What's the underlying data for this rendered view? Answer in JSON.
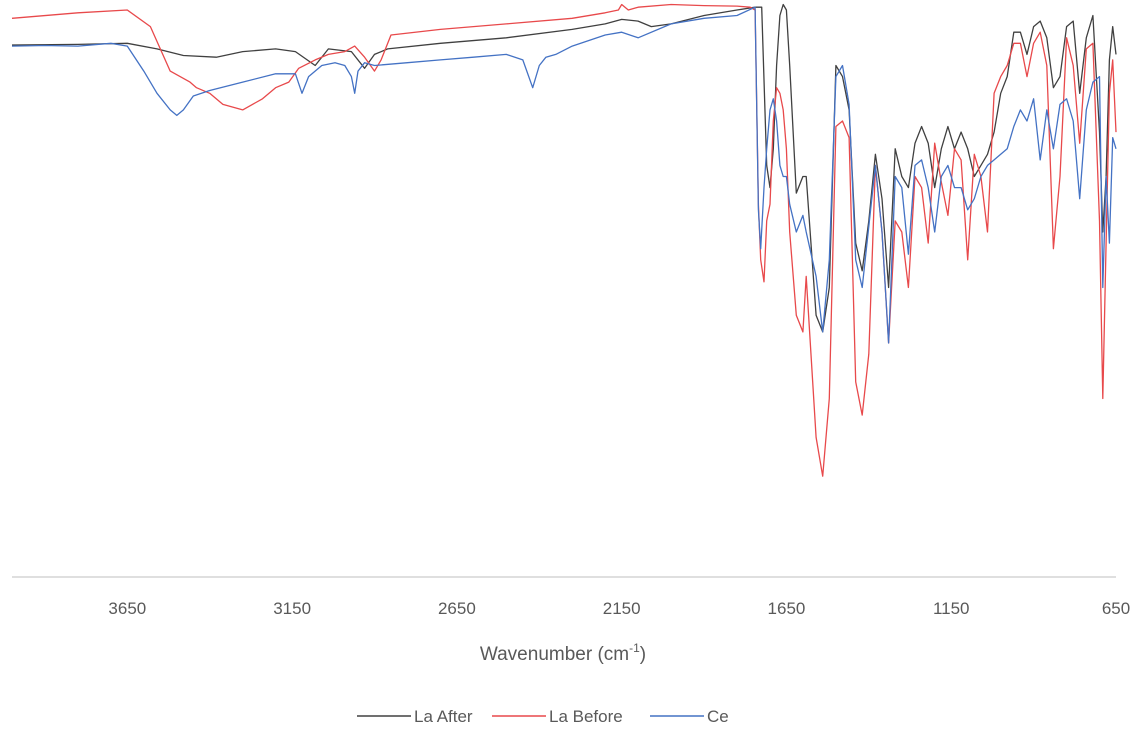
{
  "chart_data": {
    "type": "line",
    "title": "",
    "xlabel": "Wavenumber (cm",
    "xlabel_superscript": "-1",
    "xlabel_suffix": ")",
    "ylabel": "",
    "xlim": [
      4000,
      650
    ],
    "x_reversed": true,
    "ylim": [
      0,
      1
    ],
    "y_axis_visible": false,
    "grid": false,
    "legend_position": "bottom",
    "x_ticks": [
      3650,
      3150,
      2650,
      2150,
      1650,
      1150,
      650
    ],
    "x_tick_labels": [
      "3650",
      "3150",
      "2650",
      "2150",
      "1650",
      "1150",
      "650"
    ],
    "series": [
      {
        "name": "La After",
        "color": "#404040",
        "x": [
          4000,
          3800,
          3650,
          3560,
          3480,
          3380,
          3300,
          3200,
          3140,
          3080,
          3040,
          2970,
          2930,
          2900,
          2860,
          2700,
          2500,
          2300,
          2200,
          2150,
          2100,
          2060,
          2000,
          1900,
          1800,
          1745,
          1725,
          1710,
          1700,
          1690,
          1680,
          1670,
          1660,
          1650,
          1640,
          1620,
          1600,
          1590,
          1560,
          1540,
          1520,
          1500,
          1480,
          1460,
          1440,
          1420,
          1400,
          1380,
          1360,
          1340,
          1320,
          1300,
          1280,
          1260,
          1240,
          1220,
          1200,
          1180,
          1160,
          1140,
          1120,
          1100,
          1080,
          1060,
          1040,
          1020,
          1000,
          980,
          960,
          940,
          920,
          900,
          880,
          860,
          840,
          820,
          800,
          780,
          760,
          740,
          720,
          700,
          690,
          680,
          670,
          660,
          650
        ],
        "y": [
          0.937,
          0.938,
          0.94,
          0.93,
          0.918,
          0.915,
          0.925,
          0.93,
          0.925,
          0.9,
          0.93,
          0.925,
          0.895,
          0.92,
          0.93,
          0.94,
          0.95,
          0.965,
          0.975,
          0.983,
          0.98,
          0.97,
          0.975,
          0.99,
          1.0,
          1.005,
          1.005,
          0.72,
          0.68,
          0.75,
          0.9,
          0.99,
          1.01,
          1.0,
          0.9,
          0.67,
          0.7,
          0.7,
          0.45,
          0.42,
          0.5,
          0.9,
          0.88,
          0.82,
          0.58,
          0.53,
          0.62,
          0.74,
          0.66,
          0.5,
          0.75,
          0.7,
          0.68,
          0.76,
          0.79,
          0.76,
          0.68,
          0.75,
          0.79,
          0.75,
          0.78,
          0.75,
          0.7,
          0.72,
          0.74,
          0.78,
          0.85,
          0.88,
          0.96,
          0.96,
          0.92,
          0.97,
          0.98,
          0.95,
          0.86,
          0.88,
          0.97,
          0.98,
          0.85,
          0.95,
          0.99,
          0.78,
          0.6,
          0.7,
          0.91,
          0.97,
          0.92
        ]
      },
      {
        "name": "La Before",
        "color": "#e8494b",
        "x": [
          4000,
          3800,
          3650,
          3580,
          3520,
          3460,
          3440,
          3400,
          3360,
          3300,
          3240,
          3200,
          3160,
          3130,
          3080,
          3040,
          2990,
          2960,
          2930,
          2900,
          2880,
          2850,
          2700,
          2500,
          2300,
          2200,
          2160,
          2150,
          2130,
          2100,
          2000,
          1900,
          1800,
          1760,
          1745,
          1735,
          1728,
          1718,
          1710,
          1700,
          1690,
          1680,
          1670,
          1660,
          1650,
          1640,
          1620,
          1600,
          1590,
          1560,
          1540,
          1520,
          1500,
          1480,
          1460,
          1440,
          1420,
          1400,
          1380,
          1360,
          1340,
          1320,
          1300,
          1280,
          1260,
          1240,
          1220,
          1200,
          1180,
          1160,
          1140,
          1120,
          1100,
          1080,
          1060,
          1040,
          1020,
          1000,
          980,
          960,
          940,
          920,
          900,
          880,
          860,
          840,
          820,
          800,
          780,
          760,
          740,
          720,
          700,
          690,
          680,
          670,
          660,
          650
        ],
        "y": [
          0.985,
          0.995,
          1.0,
          0.97,
          0.89,
          0.87,
          0.86,
          0.85,
          0.83,
          0.82,
          0.84,
          0.86,
          0.87,
          0.895,
          0.91,
          0.92,
          0.925,
          0.935,
          0.915,
          0.89,
          0.91,
          0.955,
          0.965,
          0.975,
          0.985,
          0.995,
          1.0,
          1.01,
          1.0,
          1.005,
          1.01,
          1.008,
          1.007,
          1.005,
          1.0,
          0.65,
          0.55,
          0.51,
          0.62,
          0.65,
          0.8,
          0.86,
          0.85,
          0.82,
          0.75,
          0.6,
          0.45,
          0.42,
          0.52,
          0.23,
          0.16,
          0.3,
          0.79,
          0.8,
          0.77,
          0.33,
          0.27,
          0.38,
          0.72,
          0.6,
          0.4,
          0.62,
          0.6,
          0.5,
          0.7,
          0.68,
          0.58,
          0.76,
          0.69,
          0.63,
          0.75,
          0.73,
          0.55,
          0.74,
          0.7,
          0.6,
          0.85,
          0.88,
          0.9,
          0.94,
          0.94,
          0.88,
          0.94,
          0.96,
          0.9,
          0.57,
          0.7,
          0.95,
          0.9,
          0.76,
          0.93,
          0.94,
          0.62,
          0.3,
          0.58,
          0.85,
          0.91,
          0.78
        ]
      },
      {
        "name": "Ce",
        "color": "#4472c4",
        "x": [
          4000,
          3900,
          3800,
          3700,
          3650,
          3600,
          3560,
          3520,
          3500,
          3480,
          3450,
          3400,
          3300,
          3200,
          3140,
          3120,
          3100,
          3060,
          3020,
          2990,
          2970,
          2960,
          2950,
          2930,
          2900,
          2800,
          2700,
          2600,
          2500,
          2450,
          2420,
          2400,
          2380,
          2350,
          2300,
          2200,
          2150,
          2100,
          2000,
          1900,
          1800,
          1745,
          1735,
          1728,
          1718,
          1710,
          1700,
          1690,
          1680,
          1670,
          1660,
          1650,
          1640,
          1620,
          1600,
          1590,
          1560,
          1540,
          1520,
          1500,
          1480,
          1460,
          1440,
          1420,
          1400,
          1380,
          1360,
          1340,
          1320,
          1300,
          1280,
          1260,
          1240,
          1220,
          1200,
          1180,
          1160,
          1140,
          1120,
          1100,
          1080,
          1060,
          1040,
          1020,
          1000,
          980,
          960,
          940,
          920,
          900,
          880,
          860,
          840,
          820,
          800,
          780,
          760,
          740,
          720,
          700,
          690,
          680,
          670,
          660,
          650
        ],
        "y": [
          0.935,
          0.936,
          0.935,
          0.94,
          0.935,
          0.89,
          0.85,
          0.82,
          0.81,
          0.82,
          0.845,
          0.855,
          0.87,
          0.885,
          0.885,
          0.85,
          0.88,
          0.9,
          0.905,
          0.9,
          0.88,
          0.85,
          0.89,
          0.905,
          0.9,
          0.905,
          0.91,
          0.915,
          0.92,
          0.91,
          0.86,
          0.9,
          0.915,
          0.92,
          0.935,
          0.955,
          0.96,
          0.95,
          0.975,
          0.985,
          0.99,
          1.005,
          0.64,
          0.57,
          0.68,
          0.75,
          0.82,
          0.84,
          0.8,
          0.72,
          0.7,
          0.7,
          0.65,
          0.6,
          0.63,
          0.6,
          0.52,
          0.42,
          0.55,
          0.88,
          0.9,
          0.83,
          0.55,
          0.5,
          0.61,
          0.72,
          0.6,
          0.4,
          0.7,
          0.68,
          0.56,
          0.72,
          0.73,
          0.68,
          0.6,
          0.7,
          0.72,
          0.68,
          0.68,
          0.64,
          0.66,
          0.7,
          0.72,
          0.73,
          0.74,
          0.75,
          0.79,
          0.82,
          0.8,
          0.84,
          0.73,
          0.82,
          0.75,
          0.83,
          0.84,
          0.8,
          0.66,
          0.82,
          0.87,
          0.88,
          0.5,
          0.7,
          0.58,
          0.77,
          0.75
        ]
      }
    ]
  }
}
